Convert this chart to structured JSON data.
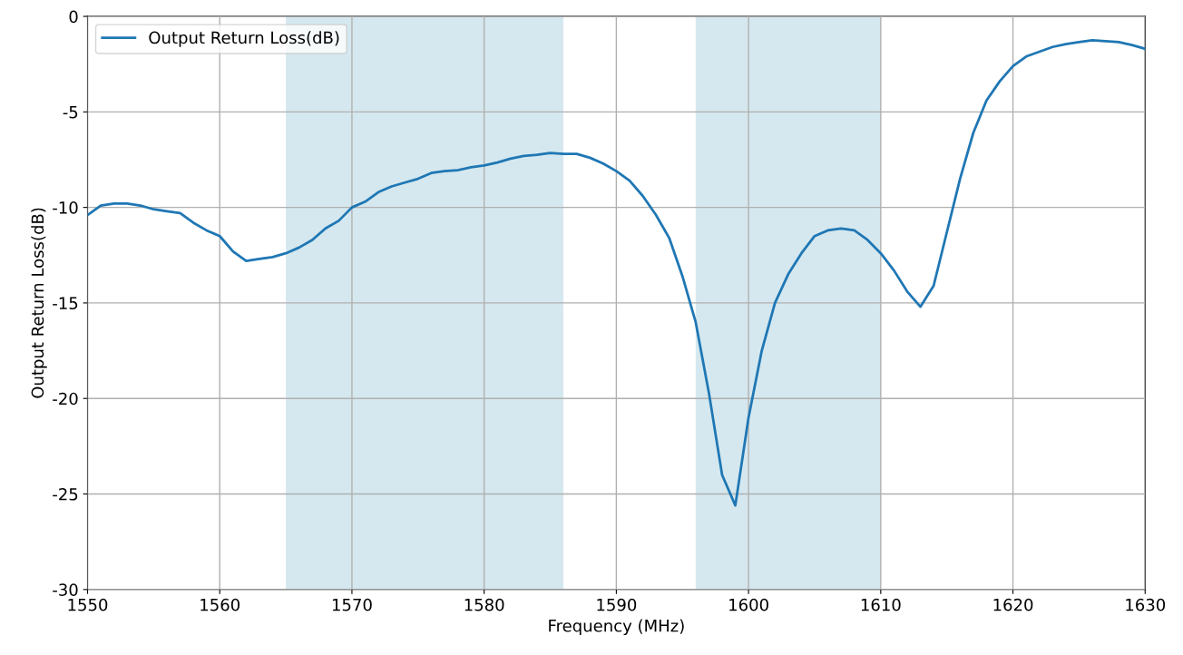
{
  "chart_data": {
    "type": "line",
    "xlabel": "Frequency (MHz)",
    "ylabel": "Output Return Loss(dB)",
    "x": [
      1550,
      1551,
      1552,
      1553,
      1554,
      1555,
      1556,
      1557,
      1558,
      1559,
      1560,
      1561,
      1562,
      1563,
      1564,
      1565,
      1566,
      1567,
      1568,
      1569,
      1570,
      1571,
      1572,
      1573,
      1574,
      1575,
      1576,
      1577,
      1578,
      1579,
      1580,
      1581,
      1582,
      1583,
      1584,
      1585,
      1586,
      1587,
      1588,
      1589,
      1590,
      1591,
      1592,
      1593,
      1594,
      1595,
      1596,
      1597,
      1598,
      1599,
      1600,
      1601,
      1602,
      1603,
      1604,
      1605,
      1606,
      1607,
      1608,
      1609,
      1610,
      1611,
      1612,
      1613,
      1614,
      1615,
      1616,
      1617,
      1618,
      1619,
      1620,
      1621,
      1622,
      1623,
      1624,
      1625,
      1626,
      1627,
      1628,
      1629,
      1630
    ],
    "series": [
      {
        "name": "Output Return Loss(dB)",
        "color": "#1f77b4",
        "values": [
          -10.4,
          -9.9,
          -9.8,
          -9.8,
          -9.9,
          -10.1,
          -10.2,
          -10.3,
          -10.8,
          -11.2,
          -11.5,
          -12.3,
          -12.8,
          -12.7,
          -12.6,
          -12.4,
          -12.1,
          -11.7,
          -11.1,
          -10.7,
          -10.0,
          -9.7,
          -9.2,
          -8.9,
          -8.7,
          -8.5,
          -8.2,
          -8.1,
          -8.05,
          -7.9,
          -7.8,
          -7.65,
          -7.45,
          -7.3,
          -7.25,
          -7.15,
          -7.2,
          -7.2,
          -7.4,
          -7.7,
          -8.1,
          -8.6,
          -9.4,
          -10.4,
          -11.6,
          -13.6,
          -16.0,
          -19.7,
          -24.0,
          -25.6,
          -21.0,
          -17.5,
          -15.0,
          -13.5,
          -12.4,
          -11.5,
          -11.2,
          -11.1,
          -11.2,
          -11.7,
          -12.4,
          -13.3,
          -14.4,
          -15.2,
          -14.1,
          -11.3,
          -8.5,
          -6.1,
          -4.4,
          -3.4,
          -2.6,
          -2.1,
          -1.85,
          -1.6,
          -1.45,
          -1.35,
          -1.25,
          -1.3,
          -1.35,
          -1.5,
          -1.7
        ]
      }
    ],
    "xlim": [
      1550,
      1630
    ],
    "xticks": [
      1550,
      1560,
      1570,
      1580,
      1590,
      1600,
      1610,
      1620,
      1630
    ],
    "ylim": [
      -30,
      0
    ],
    "yticks": [
      {
        "value": -30,
        "label": "-30"
      },
      {
        "value": -25,
        "label": "-25"
      },
      {
        "value": -20,
        "label": "-20"
      },
      {
        "value": -15,
        "label": "-15"
      },
      {
        "value": -10,
        "label": "-10"
      },
      {
        "value": -5,
        "label": "-5"
      },
      0
    ],
    "bands": [
      {
        "axis": "x",
        "from": 1565,
        "to": 1586,
        "color": "#d5e8ef"
      },
      {
        "axis": "x",
        "from": 1596,
        "to": 1610,
        "color": "#d5e8ef"
      }
    ],
    "grid": true,
    "legend": "top left",
    "marker": "none",
    "line_style": "solid"
  }
}
